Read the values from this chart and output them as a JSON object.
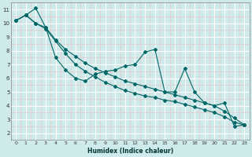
{
  "xlabel": "Humidex (Indice chaleur)",
  "bg_color": "#ceeaea",
  "grid_major_color": "#ffffff",
  "grid_minor_color": "#e8c8c8",
  "line_color": "#006666",
  "xlim": [
    -0.5,
    23.5
  ],
  "ylim": [
    1.5,
    11.5
  ],
  "xticks": [
    0,
    1,
    2,
    3,
    4,
    5,
    6,
    7,
    8,
    9,
    10,
    11,
    12,
    13,
    14,
    15,
    16,
    17,
    18,
    19,
    20,
    21,
    22,
    23
  ],
  "yticks": [
    2,
    3,
    4,
    5,
    6,
    7,
    8,
    9,
    10,
    11
  ],
  "line1_x": [
    0,
    1,
    2,
    3,
    4,
    5,
    6,
    7,
    8,
    9,
    10,
    11,
    12,
    13,
    14,
    15,
    16,
    17,
    18,
    19,
    20,
    21,
    22,
    23
  ],
  "line1_y": [
    10.2,
    10.6,
    11.1,
    9.7,
    7.5,
    6.6,
    6.0,
    5.8,
    6.3,
    6.5,
    6.6,
    6.9,
    7.0,
    7.9,
    8.1,
    5.0,
    5.0,
    6.7,
    5.0,
    4.2,
    4.0,
    4.2,
    2.5,
    2.6
  ],
  "line2_x": [
    0,
    1,
    2,
    3,
    4,
    5,
    6,
    7,
    8,
    9,
    10,
    11,
    12,
    13,
    14,
    15,
    16,
    17,
    18,
    19,
    20,
    21,
    22,
    23
  ],
  "line2_y": [
    10.2,
    10.6,
    10.0,
    9.7,
    8.8,
    8.1,
    7.6,
    7.1,
    6.7,
    6.4,
    6.1,
    5.8,
    5.6,
    5.4,
    5.2,
    5.0,
    4.8,
    4.6,
    4.4,
    4.2,
    4.0,
    3.6,
    3.1,
    2.6
  ],
  "line3_x": [
    0,
    1,
    2,
    3,
    4,
    5,
    6,
    7,
    8,
    9,
    10,
    11,
    12,
    13,
    14,
    15,
    16,
    17,
    18,
    19,
    20,
    21,
    22,
    23
  ],
  "line3_y": [
    10.2,
    10.6,
    10.0,
    9.6,
    8.7,
    7.8,
    7.0,
    6.5,
    6.1,
    5.7,
    5.4,
    5.1,
    4.9,
    4.7,
    4.6,
    4.4,
    4.3,
    4.1,
    3.9,
    3.7,
    3.5,
    3.2,
    2.8,
    2.6
  ]
}
